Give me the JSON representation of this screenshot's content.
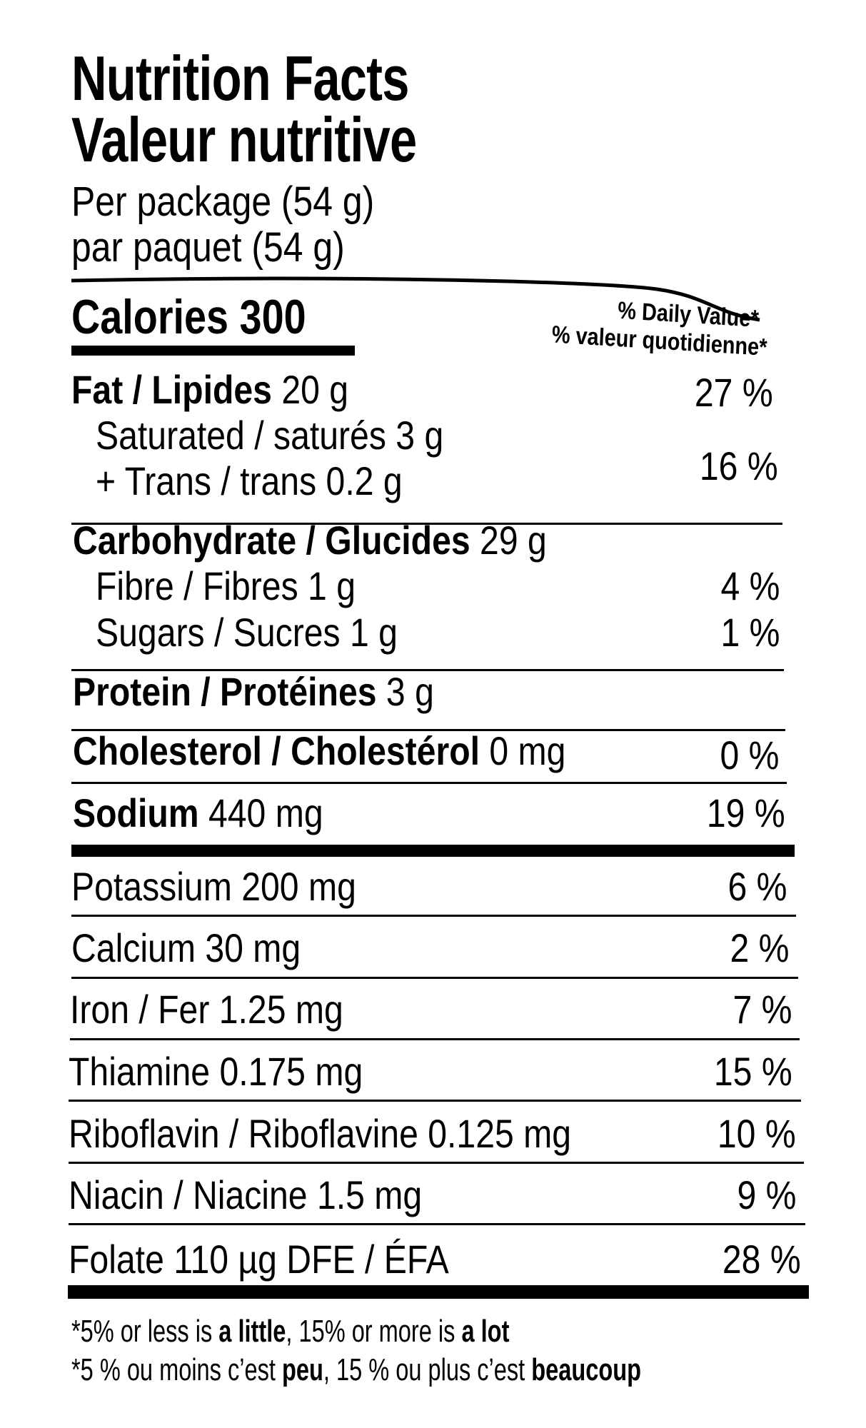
{
  "header": {
    "title_en": "Nutrition Facts",
    "title_fr": "Valeur nutritive",
    "serving_en": "Per package (54 g)",
    "serving_fr": "par paquet (54 g)"
  },
  "calories": {
    "label": "Calories",
    "value": "300"
  },
  "daily_value_heading": {
    "en": "% Daily Value*",
    "fr": "% valeur quotidienne*"
  },
  "nutrients": [
    {
      "bold": "Fat / Lipides",
      "amount": " 20 g",
      "dv": "27 %"
    },
    {
      "bold": "",
      "amount": "Saturated / saturés 3 g",
      "dv": ""
    },
    {
      "bold": "",
      "amount": "+ Trans / trans 0.2 g",
      "dv": "16 %"
    },
    {
      "bold": "Carbohydrate / Glucides",
      "amount": " 29 g",
      "dv": ""
    },
    {
      "bold": "",
      "amount": "Fibre / Fibres 1 g",
      "dv": "4 %"
    },
    {
      "bold": "",
      "amount": "Sugars / Sucres 1 g",
      "dv": "1 %"
    },
    {
      "bold": "Protein / Protéines",
      "amount": " 3 g",
      "dv": ""
    },
    {
      "bold": "Cholesterol / Cholestérol",
      "amount": " 0 mg",
      "dv": "0 %"
    },
    {
      "bold": "Sodium",
      "amount": " 440 mg",
      "dv": "19 %"
    },
    {
      "bold": "",
      "amount": "Potassium 200 mg",
      "dv": "6 %"
    },
    {
      "bold": "",
      "amount": "Calcium 30 mg",
      "dv": "2 %"
    },
    {
      "bold": "",
      "amount": "Iron / Fer 1.25 mg",
      "dv": "7 %"
    },
    {
      "bold": "",
      "amount": "Thiamine 0.175 mg",
      "dv": "15 %"
    },
    {
      "bold": "",
      "amount": "Riboflavin / Riboflavine 0.125 mg",
      "dv": "10 %"
    },
    {
      "bold": "",
      "amount": "Niacin / Niacine 1.5 mg",
      "dv": "9 %"
    },
    {
      "bold": "",
      "amount": "Folate 110 µg DFE / ÉFA",
      "dv": "28 %"
    }
  ],
  "footnote": {
    "en": {
      "a": "*5% or less is ",
      "b": "a little",
      "c": ", 15% or more is ",
      "d": "a lot"
    },
    "fr": {
      "a": "*5 % ou moins c’est ",
      "b": "peu",
      "c": ", 15 % ou plus c’est ",
      "d": "beaucoup"
    }
  }
}
